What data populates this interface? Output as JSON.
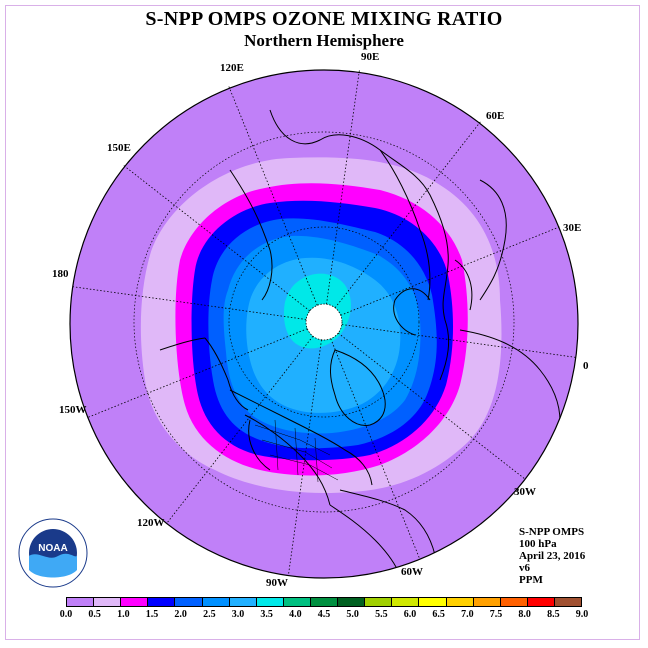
{
  "title": "S-NPP OMPS OZONE MIXING RATIO",
  "subtitle": "Northern Hemisphere",
  "longitude_labels": [
    "90E",
    "60E",
    "30E",
    "0",
    "30W",
    "60W",
    "90W",
    "120W",
    "150W",
    "180",
    "150E",
    "120E"
  ],
  "info": {
    "instrument": "S-NPP OMPS",
    "level": "100 hPa",
    "date": "April 23, 2016",
    "version": "v6",
    "units": "PPM"
  },
  "logo": {
    "text": "NOAA"
  },
  "colorbar": {
    "ticks": [
      "0.0",
      "0.5",
      "1.0",
      "1.5",
      "2.0",
      "2.5",
      "3.0",
      "3.5",
      "4.0",
      "4.5",
      "5.0",
      "5.5",
      "6.0",
      "6.5",
      "7.0",
      "7.5",
      "8.0",
      "8.5",
      "9.0"
    ],
    "colors": [
      "#c080f8",
      "#e0b8f8",
      "#ff00ff",
      "#0000ff",
      "#0060ff",
      "#0090ff",
      "#20b0ff",
      "#00e8e8",
      "#00c080",
      "#009040",
      "#006020",
      "#a0d000",
      "#d0e800",
      "#ffff00",
      "#ffd000",
      "#ffa000",
      "#ff6000",
      "#ff0000",
      "#a05030"
    ]
  }
}
